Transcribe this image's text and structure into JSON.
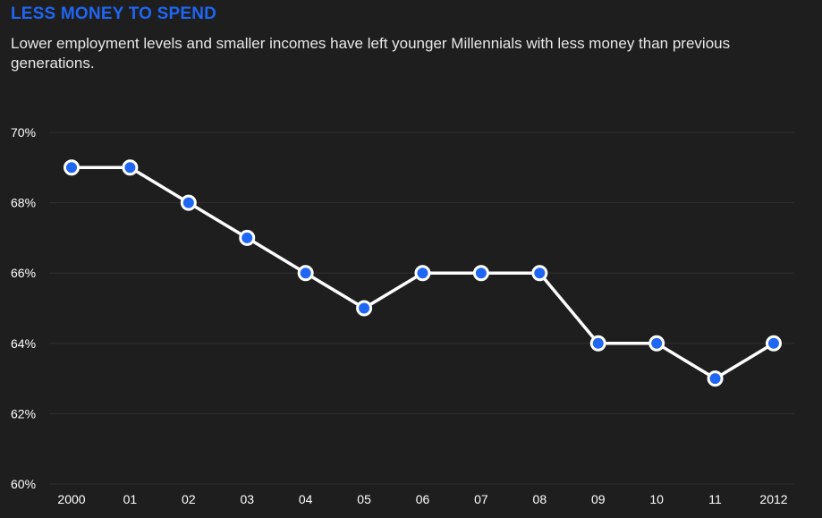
{
  "chart_data": {
    "type": "line",
    "title": "LESS MONEY TO SPEND",
    "subtitle": "Lower employment levels and smaller incomes have left younger Millennials with less money than previous generations.",
    "xlabel": "",
    "ylabel": "",
    "categories": [
      "2000",
      "01",
      "02",
      "03",
      "04",
      "05",
      "06",
      "07",
      "08",
      "09",
      "10",
      "11",
      "2012"
    ],
    "series": [
      {
        "values": [
          69,
          69,
          68,
          67,
          66,
          65,
          66,
          66,
          66,
          64,
          64,
          63,
          64
        ]
      }
    ],
    "ylim": [
      60,
      70
    ],
    "y_ticks": [
      70,
      68,
      66,
      64,
      62,
      60
    ],
    "y_tick_labels": [
      "70%",
      "68%",
      "66%",
      "64%",
      "62%",
      "60%"
    ],
    "grid": true,
    "legend": "none"
  },
  "colors": {
    "background": "#1e1e1e",
    "title": "#1f66f3",
    "line": "#ffffff",
    "marker_fill": "#1f66f3",
    "marker_stroke": "#ffffff",
    "gridline": "#2e2e2e"
  }
}
